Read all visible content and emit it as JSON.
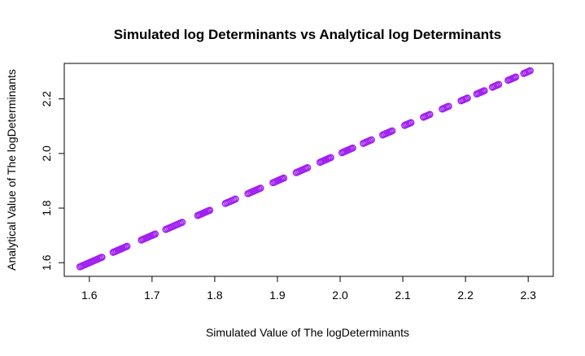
{
  "chart_data": {
    "type": "scatter",
    "title": "Simulated log Determinants vs Analytical log Determinants",
    "xlabel": "Simulated Value of The logDeterminants",
    "ylabel": "Analytical Value of The logDeterminants",
    "xlim": [
      1.56,
      2.34
    ],
    "ylim": [
      1.55,
      2.33
    ],
    "xticks": [
      "1.6",
      "1.7",
      "1.8",
      "1.9",
      "2.0",
      "2.1",
      "2.2",
      "2.3"
    ],
    "yticks": [
      "1.6",
      "1.8",
      "2.0",
      "2.2"
    ],
    "grid": false,
    "legend": "none",
    "point_color": "#a020f0",
    "segments": [
      [
        1.585,
        1.62
      ],
      [
        1.638,
        1.66
      ],
      [
        1.683,
        1.705
      ],
      [
        1.722,
        1.748
      ],
      [
        1.773,
        1.792
      ],
      [
        1.817,
        1.833
      ],
      [
        1.853,
        1.873
      ],
      [
        1.893,
        1.91
      ],
      [
        1.93,
        1.948
      ],
      [
        1.968,
        1.985
      ],
      [
        2.003,
        2.02
      ],
      [
        2.037,
        2.05
      ],
      [
        2.068,
        2.083
      ],
      [
        2.103,
        2.113
      ],
      [
        2.133,
        2.143
      ],
      [
        2.163,
        2.173
      ],
      [
        2.193,
        2.203
      ],
      [
        2.218,
        2.23
      ],
      [
        2.243,
        2.253
      ],
      [
        2.268,
        2.28
      ],
      [
        2.293,
        2.303
      ]
    ]
  }
}
